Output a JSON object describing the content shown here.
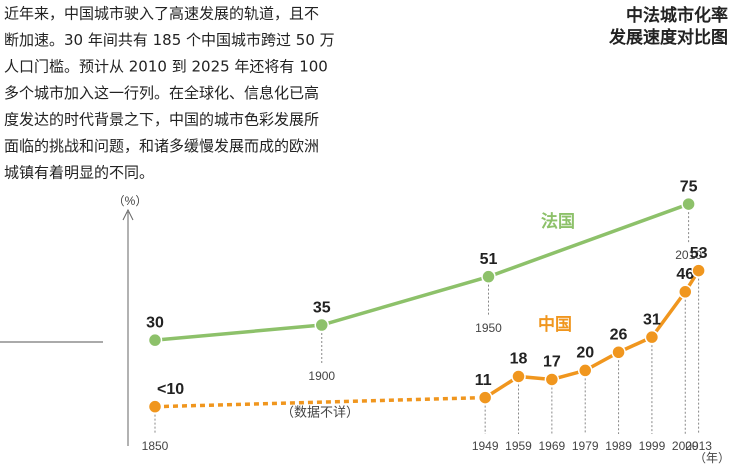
{
  "chart_data": {
    "type": "line",
    "title_lines": [
      "中法城市化率",
      "发展速度对比图"
    ],
    "text_lines": [
      "近年来，中国城市驶入了高速发展的轨道，且不",
      "断加速。30 年间共有 185 个中国城市跨过 50 万",
      "人口门槛。预计从 2010 到 2025 年还将有 100",
      "多个城市加入这一行列。在全球化、信息化已高",
      "度发达的时代背景之下，中国的城市色彩发展所",
      "面临的挑战和问题，和诸多缓慢发展而成的欧洲",
      "城镇有着明显的不同。"
    ],
    "y_unit": "（%）",
    "x_unit": "（年）",
    "annotation": "（数据不详）",
    "xlim": [
      1842,
      2020
    ],
    "ylim": [
      -5,
      78
    ],
    "series": [
      {
        "name": "法国",
        "color": "#8dc16a",
        "x": [
          1850,
          1900,
          1950,
          2010
        ],
        "values": [
          30,
          35,
          51,
          75
        ]
      },
      {
        "name": "中国",
        "color": "#f0961e",
        "x": [
          1850,
          1949,
          1959,
          1969,
          1979,
          1989,
          1999,
          2009,
          2013
        ],
        "values": [
          8,
          11,
          18,
          17,
          20,
          26,
          31,
          46,
          53
        ],
        "value_labels": [
          "<10",
          "11",
          "18",
          "17",
          "20",
          "26",
          "31",
          "46",
          "53"
        ],
        "dashed_segments": [
          0
        ]
      }
    ]
  }
}
